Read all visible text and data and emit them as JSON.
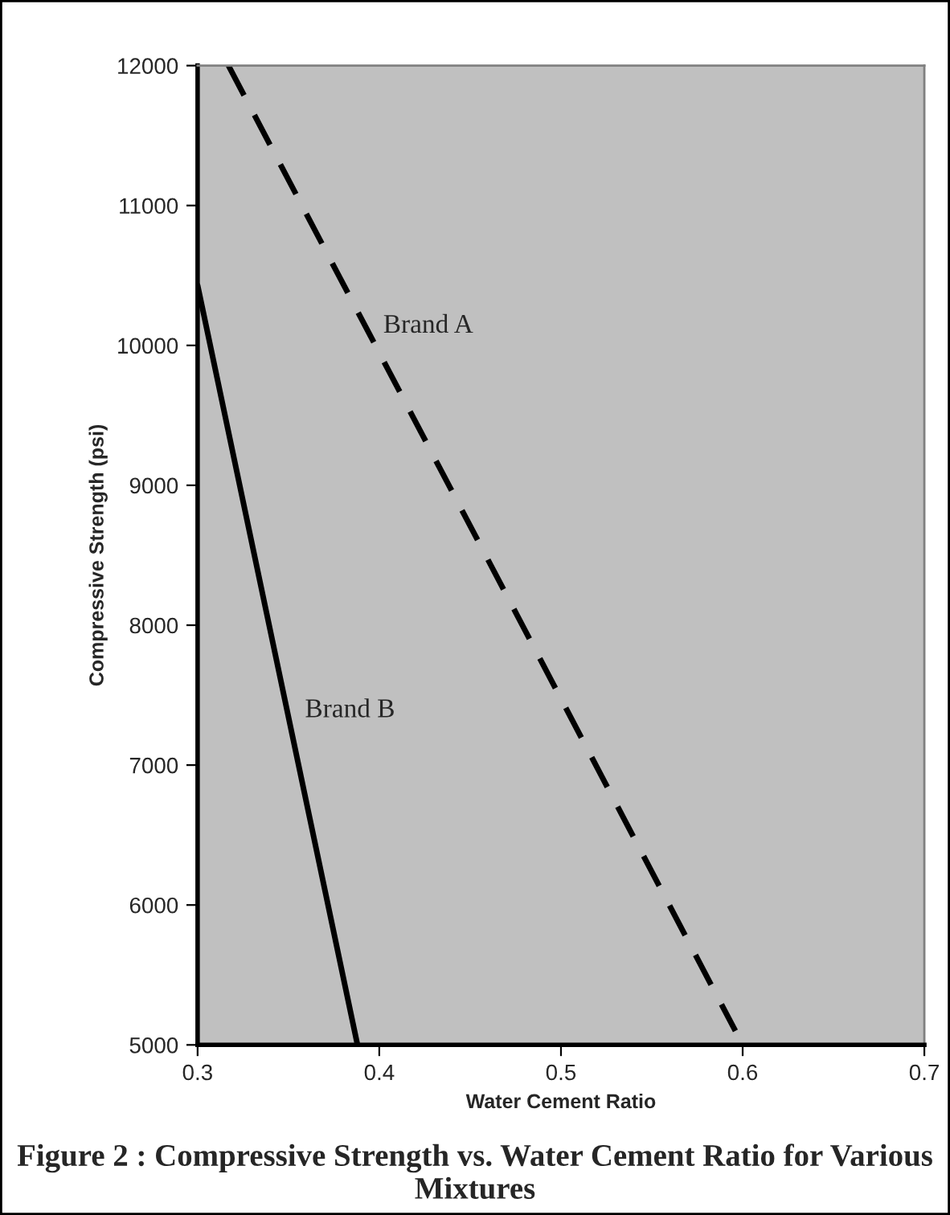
{
  "chart_data": {
    "type": "line",
    "xlabel": "Water Cement Ratio",
    "ylabel": "Compressive Strength (psi)",
    "annotations": [
      "Figure 2 : Compressive Strength vs. Water Cement Ratio for Various Mixtures"
    ],
    "series": [
      {
        "name": "Brand A",
        "color": "#000000",
        "line_style": "dashed",
        "x": [
          0.317,
          0.596
        ],
        "values": [
          12000,
          5100
        ]
      },
      {
        "name": "Brand B",
        "color": "#000000",
        "line_style": "solid",
        "x": [
          0.3,
          0.388
        ],
        "values": [
          10430,
          5000
        ]
      }
    ],
    "xlim": [
      0.3,
      0.7
    ],
    "xticks": [
      0.3,
      0.4,
      0.5,
      0.6,
      0.7
    ],
    "ylim": [
      5000,
      12000
    ],
    "yticks": [
      5000,
      6000,
      7000,
      8000,
      9000,
      10000,
      11000,
      12000
    ],
    "grid": false,
    "legend": false,
    "marker": "none"
  }
}
